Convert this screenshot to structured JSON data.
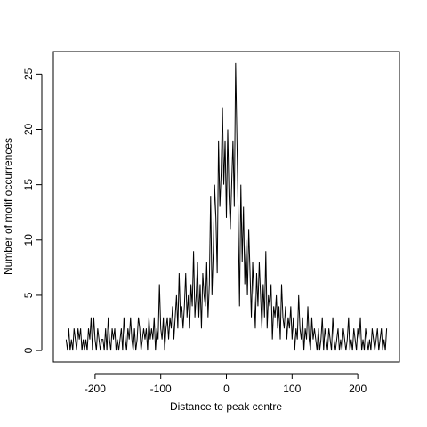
{
  "chart_data": {
    "type": "line",
    "xlabel": "Distance to peak centre",
    "ylabel": "Number of motif occurrences",
    "x": [
      -244,
      -242,
      -240,
      -238,
      -236,
      -234,
      -232,
      -230,
      -228,
      -226,
      -224,
      -222,
      -220,
      -218,
      -216,
      -214,
      -212,
      -210,
      -208,
      -206,
      -204,
      -202,
      -200,
      -198,
      -196,
      -194,
      -192,
      -190,
      -188,
      -186,
      -184,
      -182,
      -180,
      -178,
      -176,
      -174,
      -172,
      -170,
      -168,
      -166,
      -164,
      -162,
      -160,
      -158,
      -156,
      -154,
      -152,
      -150,
      -148,
      -146,
      -144,
      -142,
      -140,
      -138,
      -136,
      -134,
      -132,
      -130,
      -128,
      -126,
      -124,
      -122,
      -120,
      -118,
      -116,
      -114,
      -112,
      -110,
      -108,
      -106,
      -104,
      -102,
      -100,
      -98,
      -96,
      -94,
      -92,
      -90,
      -88,
      -86,
      -84,
      -82,
      -80,
      -78,
      -76,
      -74,
      -72,
      -70,
      -68,
      -66,
      -64,
      -62,
      -60,
      -58,
      -56,
      -54,
      -52,
      -50,
      -48,
      -46,
      -44,
      -42,
      -40,
      -38,
      -36,
      -34,
      -32,
      -30,
      -28,
      -26,
      -24,
      -22,
      -20,
      -18,
      -16,
      -14,
      -12,
      -10,
      -8,
      -6,
      -4,
      -2,
      0,
      2,
      4,
      6,
      8,
      10,
      12,
      14,
      16,
      18,
      20,
      22,
      24,
      26,
      28,
      30,
      32,
      34,
      36,
      38,
      40,
      42,
      44,
      46,
      48,
      50,
      52,
      54,
      56,
      58,
      60,
      62,
      64,
      66,
      68,
      70,
      72,
      74,
      76,
      78,
      80,
      82,
      84,
      86,
      88,
      90,
      92,
      94,
      96,
      98,
      100,
      102,
      104,
      106,
      108,
      110,
      112,
      114,
      116,
      118,
      120,
      122,
      124,
      126,
      128,
      130,
      132,
      134,
      136,
      138,
      140,
      142,
      144,
      146,
      148,
      150,
      152,
      154,
      156,
      158,
      160,
      162,
      164,
      166,
      168,
      170,
      172,
      174,
      176,
      178,
      180,
      182,
      184,
      186,
      188,
      190,
      192,
      194,
      196,
      198,
      200,
      202,
      204,
      206,
      208,
      210,
      212,
      214,
      216,
      218,
      220,
      222,
      224,
      226,
      228,
      230,
      232,
      234,
      236,
      238,
      240,
      242,
      244
    ],
    "series": [
      {
        "color": "#000000",
        "values": [
          1,
          0,
          2,
          0,
          1,
          0,
          2,
          1,
          0,
          2,
          1,
          2,
          0,
          1,
          0,
          1,
          0,
          2,
          1,
          3,
          0,
          3,
          1,
          0,
          2,
          1,
          0,
          1,
          1,
          0,
          2,
          0,
          3,
          1,
          0,
          2,
          1,
          2,
          0,
          1,
          0,
          1,
          2,
          0,
          3,
          1,
          0,
          2,
          1,
          3,
          1,
          0,
          2,
          0,
          1,
          3,
          2,
          0,
          1,
          2,
          1,
          2,
          0,
          3,
          1,
          2,
          1,
          3,
          0,
          2,
          1,
          6,
          2,
          1,
          3,
          0,
          2,
          3,
          1,
          3,
          2,
          4,
          1,
          3,
          5,
          2,
          7,
          3,
          4,
          2,
          4,
          7,
          3,
          5,
          2,
          6,
          4,
          9,
          3,
          5,
          8,
          3,
          6,
          2,
          7,
          5,
          4,
          8,
          3,
          6,
          14,
          5,
          9,
          15,
          12,
          7,
          19,
          13,
          16,
          22,
          15,
          19,
          12,
          20,
          14,
          11,
          15,
          19,
          13,
          26,
          19,
          12,
          4,
          15,
          8,
          13,
          6,
          10,
          5,
          11,
          7,
          3,
          8,
          5,
          2,
          7,
          4,
          8,
          5,
          2,
          6,
          3,
          9,
          2,
          5,
          4,
          6,
          1,
          4,
          3,
          5,
          2,
          4,
          1,
          6,
          3,
          2,
          4,
          1,
          3,
          2,
          4,
          1,
          3,
          0,
          2,
          1,
          5,
          2,
          1,
          3,
          0,
          2,
          1,
          4,
          1,
          0,
          3,
          1,
          2,
          1,
          0,
          2,
          0,
          1,
          3,
          0,
          2,
          1,
          0,
          2,
          1,
          0,
          3,
          1,
          0,
          1,
          2,
          0,
          1,
          0,
          2,
          1,
          0,
          1,
          3,
          0,
          1,
          0,
          2,
          1,
          0,
          2,
          1,
          3,
          0,
          1,
          0,
          2,
          1,
          0,
          1,
          0,
          2,
          1,
          0,
          1,
          2,
          0,
          1,
          2,
          0,
          1,
          0,
          2
        ]
      }
    ],
    "xlim": [
      -263.5,
      263.5
    ],
    "ylim": [
      -1.04,
      27.04
    ],
    "xticks": [
      -200,
      -100,
      0,
      100,
      200
    ],
    "yticks": [
      0,
      5,
      10,
      15,
      20,
      25
    ]
  }
}
